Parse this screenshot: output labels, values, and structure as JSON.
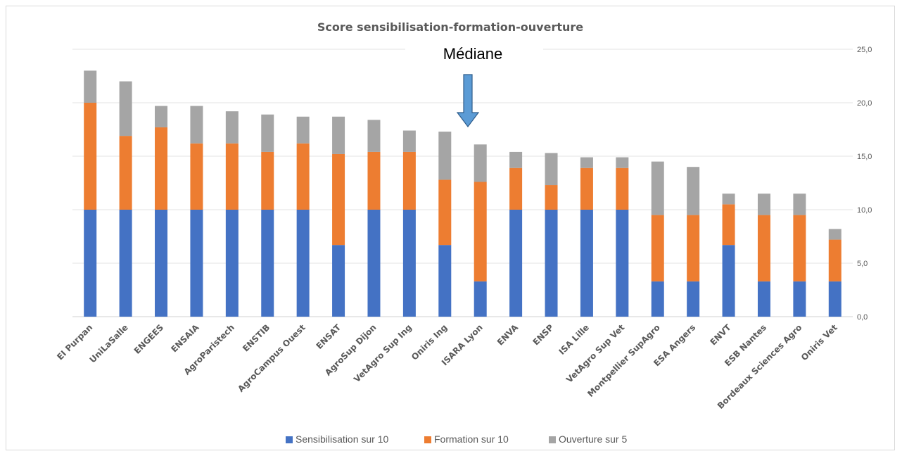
{
  "chart_data": {
    "type": "bar",
    "stacked": true,
    "title": "Score sensibilisation-formation-ouverture",
    "categories": [
      "EI Purpan",
      "UniLaSalle",
      "ENGEES",
      "ENSAIA",
      "AgroParistech",
      "ENSTIB",
      "AgroCampus Ouest",
      "ENSAT",
      "AgroSup Dijon",
      "VetAgro Sup Ing",
      "Oniris Ing",
      "ISARA Lyon",
      "ENVA",
      "ENSP",
      "ISA Lille",
      "VetAgro Sup Vet",
      "Montpellier SupAgro",
      "ESA Angers",
      "ENVT",
      "ESB Nantes",
      "Bordeaux Sciences Agro",
      "Oniris Vet"
    ],
    "series": [
      {
        "name": "Sensibilisation sur 10",
        "color": "#4472c4",
        "values": [
          10,
          10,
          10,
          10,
          10,
          10,
          10,
          6.7,
          10,
          10,
          6.7,
          3.3,
          10,
          10,
          10,
          10,
          3.3,
          3.3,
          6.7,
          3.3,
          3.3,
          3.3
        ]
      },
      {
        "name": "Formation sur 10",
        "color": "#ed7d31",
        "values": [
          10,
          6.9,
          7.7,
          6.2,
          6.2,
          5.4,
          6.2,
          8.5,
          5.4,
          5.4,
          6.1,
          9.3,
          3.9,
          2.3,
          3.9,
          3.9,
          6.2,
          6.2,
          3.8,
          6.2,
          6.2,
          3.9
        ]
      },
      {
        "name": "Ouverture sur 5",
        "color": "#a5a5a5",
        "values": [
          3.0,
          5.1,
          2.0,
          3.5,
          3.0,
          3.5,
          2.5,
          3.5,
          3.0,
          2.0,
          4.5,
          3.5,
          1.5,
          3.0,
          1.0,
          1.0,
          5.0,
          4.5,
          1.0,
          2.0,
          2.0,
          1.0
        ]
      }
    ],
    "ylim": [
      0,
      25
    ],
    "yticks": [
      "0,0",
      "5,0",
      "10,0",
      "15,0",
      "20,0",
      "25,0"
    ],
    "y_axis_side": "right",
    "grid": true,
    "legend": "bottom",
    "xlabel": "",
    "ylabel": ""
  },
  "annotation": {
    "label": "Médiane",
    "arrow_color": "#5b9bd5",
    "points_to": "Oniris Ing"
  }
}
